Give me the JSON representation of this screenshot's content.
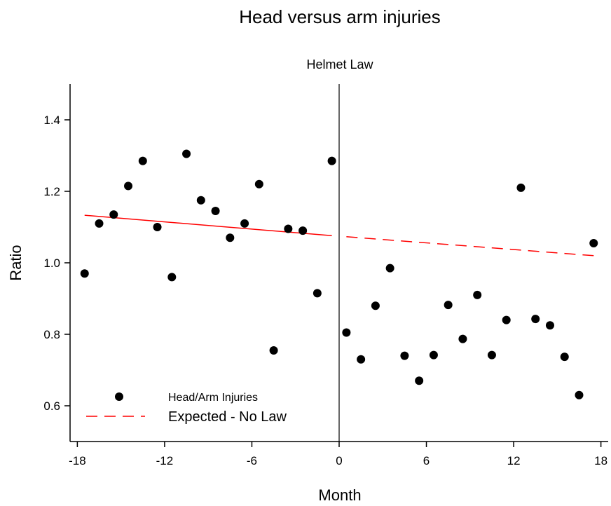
{
  "chart_data": {
    "type": "scatter",
    "title": "Head versus arm injuries",
    "annotation": "Helmet Law",
    "xlabel": "Month",
    "ylabel": "Ratio",
    "xlim": [
      -18.5,
      18.5
    ],
    "ylim": [
      0.5,
      1.5
    ],
    "x_ticks": [
      -18,
      -12,
      -6,
      0,
      6,
      12,
      18
    ],
    "x_tick_labels": [
      "-18",
      "-12",
      "-6",
      "0",
      "6",
      "12",
      "18"
    ],
    "y_ticks": [
      0.6,
      0.8,
      1.0,
      1.2,
      1.4
    ],
    "y_tick_labels": [
      "0.6",
      "0.8",
      "1.0",
      "1.2",
      "1.4"
    ],
    "grid": false,
    "law_line_x": 0,
    "colors": {
      "points": "#000000",
      "trend": "#ff0000",
      "axes": "#000000"
    },
    "legend": {
      "placement": "bottom-left",
      "entries": [
        {
          "label": "Head/Arm Injuries",
          "marker": "dot"
        },
        {
          "label": "Expected - No Law",
          "marker": "dashed-line"
        }
      ]
    },
    "series": [
      {
        "name": "Head/Arm Injuries",
        "kind": "scatter",
        "points": [
          {
            "x": -17.5,
            "y": 0.97
          },
          {
            "x": -16.5,
            "y": 1.11
          },
          {
            "x": -15.5,
            "y": 1.135
          },
          {
            "x": -14.5,
            "y": 1.215
          },
          {
            "x": -13.5,
            "y": 1.285
          },
          {
            "x": -12.5,
            "y": 1.1
          },
          {
            "x": -11.5,
            "y": 0.96
          },
          {
            "x": -10.5,
            "y": 1.305
          },
          {
            "x": -9.5,
            "y": 1.175
          },
          {
            "x": -8.5,
            "y": 1.145
          },
          {
            "x": -7.5,
            "y": 1.07
          },
          {
            "x": -6.5,
            "y": 1.11
          },
          {
            "x": -5.5,
            "y": 1.22
          },
          {
            "x": -4.5,
            "y": 0.755
          },
          {
            "x": -3.5,
            "y": 1.095
          },
          {
            "x": -2.5,
            "y": 1.09
          },
          {
            "x": -1.5,
            "y": 0.915
          },
          {
            "x": -0.5,
            "y": 1.285
          },
          {
            "x": 0.5,
            "y": 0.805
          },
          {
            "x": 1.5,
            "y": 0.73
          },
          {
            "x": 2.5,
            "y": 0.88
          },
          {
            "x": 3.5,
            "y": 0.985
          },
          {
            "x": 4.5,
            "y": 0.74
          },
          {
            "x": 5.5,
            "y": 0.67
          },
          {
            "x": 6.5,
            "y": 0.742
          },
          {
            "x": 7.5,
            "y": 0.882
          },
          {
            "x": 8.5,
            "y": 0.787
          },
          {
            "x": 9.5,
            "y": 0.91
          },
          {
            "x": 10.5,
            "y": 0.742
          },
          {
            "x": 11.5,
            "y": 0.84
          },
          {
            "x": 12.5,
            "y": 1.21
          },
          {
            "x": 13.5,
            "y": 0.843
          },
          {
            "x": 14.5,
            "y": 0.825
          },
          {
            "x": 15.5,
            "y": 0.737
          },
          {
            "x": 16.5,
            "y": 0.63
          },
          {
            "x": 17.5,
            "y": 1.055
          }
        ]
      },
      {
        "name": "",
        "kind": "line",
        "style": "solid",
        "points": [
          {
            "x": -17.5,
            "y": 1.133
          },
          {
            "x": -0.5,
            "y": 1.076
          }
        ]
      },
      {
        "name": "Expected - No Law",
        "kind": "line",
        "style": "dashed",
        "points": [
          {
            "x": 0.5,
            "y": 1.073
          },
          {
            "x": 17.5,
            "y": 1.02
          }
        ]
      }
    ]
  }
}
